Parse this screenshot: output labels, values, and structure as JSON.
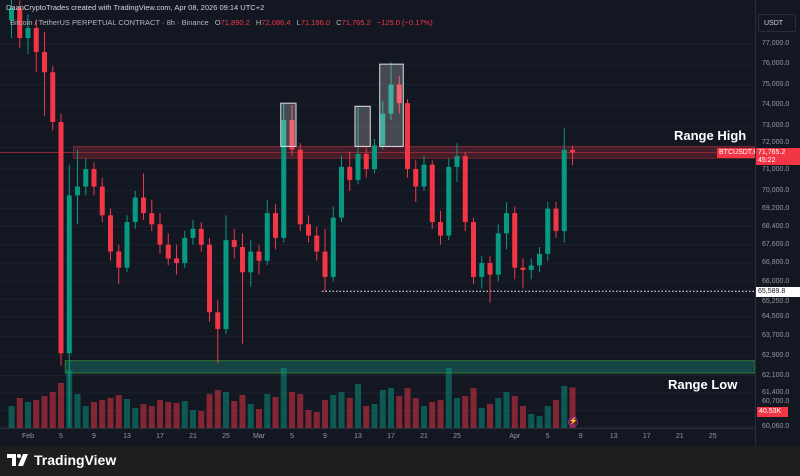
{
  "header": {
    "credit": "DaanCryptoTrades created with TradingView.com, Apr 08, 2026 09:14 UTC+2",
    "symbol_title": "Bitcoin / TetherUS PERPETUAL CONTRACT · 8h · Binance",
    "open_label": "O",
    "open": "71,890.2",
    "high_label": "H",
    "high": "72,086.4",
    "low_label": "L",
    "low": "71,186.0",
    "close_label": "C",
    "close": "71,765.2",
    "change": "−125.0 (−0.17%)"
  },
  "axis": {
    "currency": "USDT",
    "price_labels": [
      "77,000.0",
      "76,000.0",
      "75,000.0",
      "74,000.0",
      "73,000.0",
      "72,000.0",
      "71,000.0",
      "70,000.0",
      "69,200.0",
      "68,400.0",
      "67,600.0",
      "66,800.0",
      "66,000.0",
      "65,250.0",
      "64,500.0",
      "63,700.0",
      "62,900.0",
      "62,100.0",
      "61,400.0",
      "60,700.0",
      "60,060.0"
    ],
    "time_labels": [
      {
        "label": "Feb",
        "date": "2026-02-01"
      },
      {
        "label": "5",
        "date": "2026-02-05"
      },
      {
        "label": "9",
        "date": "2026-02-09"
      },
      {
        "label": "13",
        "date": "2026-02-13"
      },
      {
        "label": "17",
        "date": "2026-02-17"
      },
      {
        "label": "21",
        "date": "2026-02-21"
      },
      {
        "label": "25",
        "date": "2026-02-25"
      },
      {
        "label": "Mar",
        "date": "2026-03-01"
      },
      {
        "label": "5",
        "date": "2026-03-05"
      },
      {
        "label": "9",
        "date": "2026-03-09"
      },
      {
        "label": "13",
        "date": "2026-03-13"
      },
      {
        "label": "17",
        "date": "2026-03-17"
      },
      {
        "label": "21",
        "date": "2026-03-21"
      },
      {
        "label": "25",
        "date": "2026-03-25"
      },
      {
        "label": "Apr",
        "date": "2026-04-01"
      },
      {
        "label": "5",
        "date": "2026-04-05"
      },
      {
        "label": "9",
        "date": "2026-04-09"
      },
      {
        "label": "13",
        "date": "2026-04-13"
      },
      {
        "label": "17",
        "date": "2026-04-17"
      },
      {
        "label": "21",
        "date": "2026-04-21"
      },
      {
        "label": "25",
        "date": "2026-04-25"
      }
    ]
  },
  "tags": {
    "symbol": "BTCUSDT.P",
    "last_price": "71,765.2",
    "countdown": "45:22",
    "level_price": "65,589.8",
    "volume": "40.53K"
  },
  "annotations": {
    "range_high_label": "Range High",
    "range_low_label": "Range Low"
  },
  "colors": {
    "up": "#089981",
    "down": "#f23645",
    "background": "#131722",
    "range_high": "#f23645",
    "range_low": "#22ab94"
  },
  "footer": {
    "brand": "TradingView"
  },
  "chart_data": {
    "type": "candlestick",
    "symbol": "BTCUSDT.P",
    "interval": "8h",
    "exchange": "Binance",
    "y_scale": "log",
    "ylim": [
      60060,
      77000
    ],
    "fields": [
      "date",
      "open",
      "high",
      "low",
      "close",
      "volume_k"
    ],
    "candles": [
      [
        "2026-01-30",
        78200,
        79500,
        77300,
        78800,
        22
      ],
      [
        "2026-01-31",
        78800,
        79200,
        76800,
        77300,
        30
      ],
      [
        "2026-02-01",
        77300,
        78500,
        76500,
        77800,
        26
      ],
      [
        "2026-02-02",
        77800,
        78200,
        75600,
        76600,
        28
      ],
      [
        "2026-02-03",
        76600,
        77600,
        73500,
        75600,
        32
      ],
      [
        "2026-02-04",
        75600,
        75900,
        72800,
        73200,
        36
      ],
      [
        "2026-02-05",
        73200,
        73600,
        62500,
        63000,
        45
      ],
      [
        "2026-02-06",
        63000,
        71200,
        60060,
        69800,
        58
      ],
      [
        "2026-02-07",
        69800,
        71900,
        68500,
        70200,
        34
      ],
      [
        "2026-02-08",
        70200,
        71500,
        69800,
        71000,
        22
      ],
      [
        "2026-02-09",
        71000,
        71300,
        69800,
        70200,
        26
      ],
      [
        "2026-02-10",
        70200,
        70600,
        68600,
        68900,
        28
      ],
      [
        "2026-02-11",
        68900,
        69200,
        66900,
        67300,
        30
      ],
      [
        "2026-02-12",
        67300,
        67600,
        65900,
        66600,
        33
      ],
      [
        "2026-02-13",
        66600,
        68900,
        66400,
        68600,
        29
      ],
      [
        "2026-02-14",
        68600,
        70000,
        68300,
        69700,
        20
      ],
      [
        "2026-02-15",
        69700,
        70800,
        68700,
        69000,
        24
      ],
      [
        "2026-02-16",
        69000,
        69600,
        68200,
        68500,
        22
      ],
      [
        "2026-02-17",
        68500,
        69000,
        67200,
        67600,
        28
      ],
      [
        "2026-02-18",
        67600,
        68100,
        66700,
        67000,
        26
      ],
      [
        "2026-02-19",
        67000,
        67600,
        66300,
        66800,
        25
      ],
      [
        "2026-02-20",
        66800,
        68200,
        66600,
        67900,
        27
      ],
      [
        "2026-02-21",
        67900,
        68700,
        67600,
        68300,
        18
      ],
      [
        "2026-02-22",
        68300,
        68600,
        67300,
        67600,
        17
      ],
      [
        "2026-02-23",
        67600,
        67900,
        64300,
        64700,
        34
      ],
      [
        "2026-02-24",
        64700,
        65200,
        62600,
        64000,
        38
      ],
      [
        "2026-02-25",
        64000,
        68900,
        63800,
        67800,
        36
      ],
      [
        "2026-02-26",
        67800,
        68300,
        67000,
        67500,
        27
      ],
      [
        "2026-02-27",
        67500,
        68100,
        63400,
        66400,
        33
      ],
      [
        "2026-02-28",
        66400,
        67800,
        65800,
        67300,
        24
      ],
      [
        "2026-03-01",
        67300,
        67600,
        66300,
        66900,
        19
      ],
      [
        "2026-03-02",
        66900,
        69600,
        66700,
        69000,
        34
      ],
      [
        "2026-03-03",
        69000,
        69400,
        67400,
        67900,
        31
      ],
      [
        "2026-03-04",
        67900,
        74100,
        67700,
        73300,
        60
      ],
      [
        "2026-03-05",
        73300,
        74000,
        71600,
        71900,
        36
      ],
      [
        "2026-03-06",
        71900,
        72200,
        68200,
        68500,
        34
      ],
      [
        "2026-03-07",
        68500,
        68900,
        67700,
        68000,
        18
      ],
      [
        "2026-03-08",
        68000,
        68400,
        66900,
        67300,
        16
      ],
      [
        "2026-03-09",
        67300,
        68300,
        65590,
        66200,
        28
      ],
      [
        "2026-03-10",
        66200,
        69300,
        66000,
        68800,
        33
      ],
      [
        "2026-03-11",
        68800,
        71600,
        68600,
        71100,
        36
      ],
      [
        "2026-03-12",
        71100,
        71800,
        70000,
        70500,
        30
      ],
      [
        "2026-03-13",
        70500,
        73900,
        70300,
        71700,
        44
      ],
      [
        "2026-03-14",
        71700,
        72000,
        70600,
        71000,
        22
      ],
      [
        "2026-03-15",
        71000,
        72400,
        70800,
        72100,
        24
      ],
      [
        "2026-03-16",
        72100,
        74200,
        71900,
        73600,
        38
      ],
      [
        "2026-03-17",
        73600,
        76100,
        73300,
        75000,
        40
      ],
      [
        "2026-03-18",
        75000,
        75400,
        73600,
        74100,
        32
      ],
      [
        "2026-03-19",
        74100,
        74300,
        70600,
        71000,
        40
      ],
      [
        "2026-03-20",
        71000,
        71400,
        69500,
        70200,
        30
      ],
      [
        "2026-03-21",
        70200,
        71600,
        70000,
        71200,
        22
      ],
      [
        "2026-03-22",
        71200,
        71400,
        68300,
        68600,
        26
      ],
      [
        "2026-03-23",
        68600,
        69100,
        67600,
        68000,
        28
      ],
      [
        "2026-03-24",
        68000,
        71500,
        67800,
        71100,
        60
      ],
      [
        "2026-03-25",
        71100,
        72200,
        70400,
        71600,
        30
      ],
      [
        "2026-03-26",
        71600,
        71800,
        68200,
        68600,
        32
      ],
      [
        "2026-03-27",
        68600,
        68800,
        65900,
        66200,
        40
      ],
      [
        "2026-03-28",
        66200,
        67100,
        65700,
        66800,
        20
      ],
      [
        "2026-03-29",
        66800,
        67100,
        65100,
        66300,
        24
      ],
      [
        "2026-03-30",
        66300,
        68500,
        66000,
        68100,
        30
      ],
      [
        "2026-03-31",
        68100,
        69500,
        67400,
        69000,
        36
      ],
      [
        "2026-04-01",
        69000,
        69300,
        66100,
        66600,
        32
      ],
      [
        "2026-04-02",
        66600,
        67000,
        65700,
        66500,
        22
      ],
      [
        "2026-04-03",
        66500,
        67000,
        66100,
        66700,
        14
      ],
      [
        "2026-04-04",
        66700,
        67500,
        66400,
        67200,
        12
      ],
      [
        "2026-04-05",
        67200,
        69500,
        66900,
        69200,
        22
      ],
      [
        "2026-04-06",
        69200,
        69500,
        67900,
        68200,
        28
      ],
      [
        "2026-04-07",
        68200,
        72900,
        67700,
        71890,
        42
      ],
      [
        "2026-04-08",
        71890,
        72086.4,
        71186,
        71765.2,
        40.53
      ]
    ],
    "zones": [
      {
        "name": "Range High",
        "low": 71500,
        "high": 72050,
        "from": "2026-02-07"
      },
      {
        "name": "Range Low",
        "low": 62200,
        "high": 62700,
        "from": "2026-02-06"
      }
    ],
    "boxes": [
      {
        "from": "2026-03-04",
        "to": "2026-03-05",
        "low": 72050,
        "high": 74100
      },
      {
        "from": "2026-03-13",
        "to": "2026-03-14",
        "low": 72050,
        "high": 73950
      },
      {
        "from": "2026-03-16",
        "to": "2026-03-18",
        "low": 72050,
        "high": 76000
      }
    ],
    "levels": [
      {
        "price": 65589.8,
        "from": "2026-03-09",
        "style": "dotted"
      }
    ],
    "last_price": 71765.2
  }
}
